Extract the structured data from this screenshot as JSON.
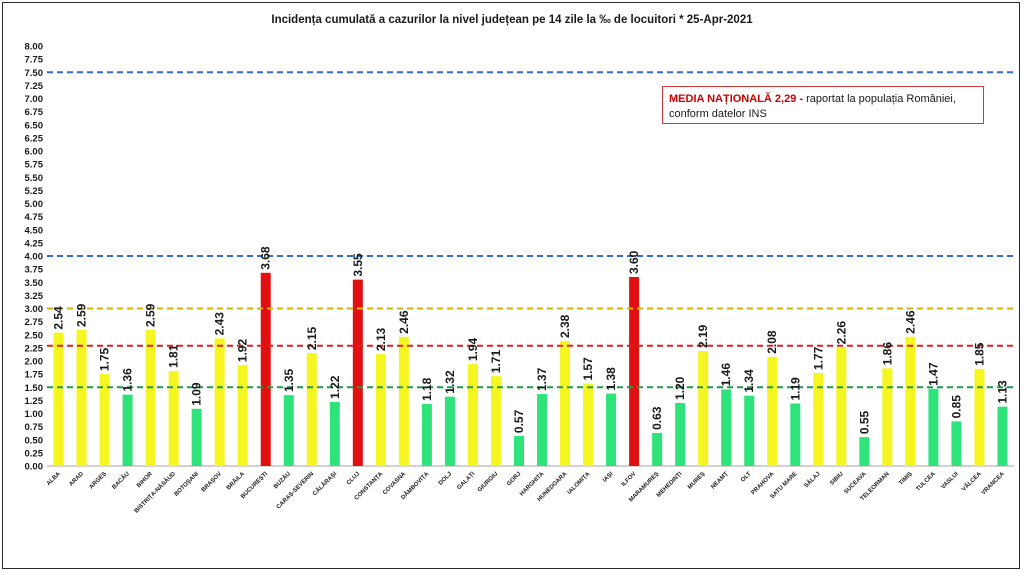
{
  "chart_data": {
    "type": "bar",
    "title": "Incidența cumulată a cazurilor la nivel județean pe 14 zile la ‰ de locuitori *   25-Apr-2021",
    "xlabel": "",
    "ylabel": "",
    "ylim": [
      0,
      8
    ],
    "ytick_step": 0.25,
    "yticks": [
      "0.00",
      "0.25",
      "0.50",
      "0.75",
      "1.00",
      "1.25",
      "1.50",
      "1.75",
      "2.00",
      "2.25",
      "2.50",
      "2.75",
      "3.00",
      "3.25",
      "3.50",
      "3.75",
      "4.00",
      "4.25",
      "4.50",
      "4.75",
      "5.00",
      "5.25",
      "5.50",
      "5.75",
      "6.00",
      "6.25",
      "6.50",
      "6.75",
      "7.00",
      "7.25",
      "7.50",
      "7.75",
      "8.00"
    ],
    "categories": [
      "ALBA",
      "ARAD",
      "ARGEȘ",
      "BACĂU",
      "BIHOR",
      "BISTRIȚA-NĂSĂUD",
      "BOTOȘANI",
      "BRAȘOV",
      "BRĂILA",
      "BUCUREȘTI",
      "BUZĂU",
      "CARAȘ-SEVERIN",
      "CĂLĂRAȘI",
      "CLUJ",
      "CONSTANȚA",
      "COVASNA",
      "DÂMBOVIȚA",
      "DOLJ",
      "GALAȚI",
      "GIURGIU",
      "GORJ",
      "HARGHITA",
      "HUNEDOARA",
      "IALOMIȚA",
      "IAȘI",
      "ILFOV",
      "MARAMUREȘ",
      "MEHEDINȚI",
      "MUREȘ",
      "NEAMȚ",
      "OLT",
      "PRAHOVA",
      "SATU MARE",
      "SĂLAJ",
      "SIBIU",
      "SUCEAVA",
      "TELEORMAN",
      "TIMIȘ",
      "TULCEA",
      "VASLUI",
      "VÂLCEA",
      "VRANCEA"
    ],
    "values": [
      2.54,
      2.59,
      1.75,
      1.36,
      2.59,
      1.81,
      1.09,
      2.43,
      1.92,
      3.68,
      1.35,
      2.15,
      1.22,
      3.55,
      2.13,
      2.46,
      1.18,
      1.32,
      1.94,
      1.71,
      0.57,
      1.37,
      2.38,
      1.57,
      1.38,
      3.6,
      0.63,
      1.2,
      2.19,
      1.46,
      1.34,
      2.08,
      1.19,
      1.77,
      2.26,
      0.55,
      1.86,
      2.46,
      1.47,
      0.85,
      1.85,
      1.13
    ],
    "value_labels": [
      "2.54",
      "2.59",
      "1.75",
      "1.36",
      "2.59",
      "1.81",
      "1.09",
      "2.43",
      "1.92",
      "3.68",
      "1.35",
      "2.15",
      "1.22",
      "3.55",
      "2.13",
      "2.46",
      "1.18",
      "1.32",
      "1.94",
      "1.71",
      "0.57",
      "1.37",
      "2.38",
      "1.57",
      "1.38",
      "3.60",
      "0.63",
      "1.20",
      "2.19",
      "1.46",
      "1.34",
      "2.08",
      "1.19",
      "1.77",
      "2.26",
      "0.55",
      "1.86",
      "2.46",
      "1.47",
      "0.85",
      "1.85",
      "1.13"
    ],
    "color_rule": {
      "green_below": 1.5,
      "yellow_below": 3.0,
      "red_above": 3.0
    },
    "colors": {
      "green": "#2ee37a",
      "yellow": "#f5f520",
      "red": "#e01010"
    },
    "reference_lines": [
      {
        "value": 7.5,
        "color": "#2f6fd0"
      },
      {
        "value": 4.0,
        "color": "#2f6fd0"
      },
      {
        "value": 3.0,
        "color": "#d8b200"
      },
      {
        "value": 2.29,
        "color": "#e02020"
      },
      {
        "value": 1.5,
        "color": "#1f9b4a"
      }
    ],
    "grid": false,
    "legend": "none"
  },
  "annotation": {
    "bold_text": "MEDIA NAȚIONALĂ  2,29 -",
    "rest_text": " raportat la populația României, conform datelor INS"
  }
}
